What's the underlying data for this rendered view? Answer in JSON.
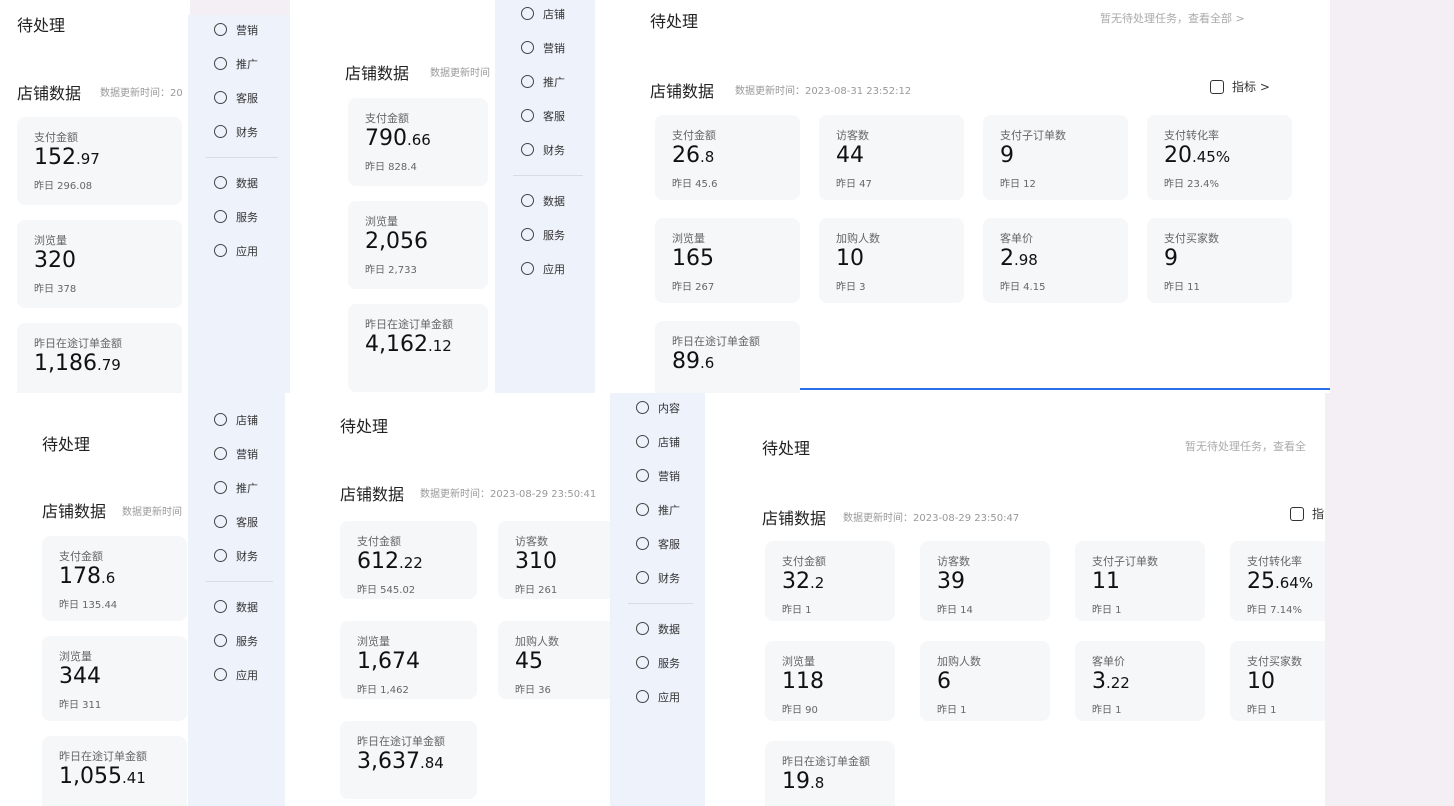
{
  "panels": [
    {
      "pending": "待处理",
      "store_title": "店铺数据",
      "update_time": "数据更新时间：20",
      "cards": [
        {
          "label": "支付金额",
          "value": "152.97",
          "previous": "昨日 296.08"
        },
        {
          "label": "浏览量",
          "value": "320",
          "previous": "昨日 378"
        },
        {
          "label": "昨日在途订单金额",
          "value": "1,186.79"
        }
      ]
    },
    {
      "store_title": "店铺数据",
      "update_time": "数据更新时间",
      "cards": [
        {
          "label": "支付金额",
          "value": "790.66",
          "previous": "昨日 828.4"
        },
        {
          "label": "浏览量",
          "value": "2,056",
          "previous": "昨日 2,733"
        },
        {
          "label": "昨日在途订单金额",
          "value": "4,162.12"
        }
      ]
    },
    {
      "pending": "待处理",
      "notice": "暂无待处理任务，查看全部 >",
      "store_title": "店铺数据",
      "update_time": "数据更新时间：2023-08-31 23:52:12",
      "metric": "指标 >",
      "cards": [
        {
          "label": "支付金额",
          "value": "26.8",
          "previous": "昨日 45.6"
        },
        {
          "label": "访客数",
          "value": "44",
          "previous": "昨日 47"
        },
        {
          "label": "支付子订单数",
          "value": "9",
          "previous": "昨日 12"
        },
        {
          "label": "支付转化率",
          "value": "20.45%",
          "previous": "昨日 23.4%"
        },
        {
          "label": "浏览量",
          "value": "165",
          "previous": "昨日 267"
        },
        {
          "label": "加购人数",
          "value": "10",
          "previous": "昨日 3"
        },
        {
          "label": "客单价",
          "value": "2.98",
          "previous": "昨日 4.15"
        },
        {
          "label": "支付买家数",
          "value": "9",
          "previous": "昨日 11"
        },
        {
          "label": "昨日在途订单金额",
          "value": "89.6"
        }
      ]
    },
    {
      "pending": "待处理",
      "store_title": "店铺数据",
      "update_time": "数据更新时间",
      "cards": [
        {
          "label": "支付金额",
          "value": "178.6",
          "previous": "昨日 135.44"
        },
        {
          "label": "浏览量",
          "value": "344",
          "previous": "昨日 311"
        },
        {
          "label": "昨日在途订单金额",
          "value": "1,055.41"
        }
      ]
    },
    {
      "pending": "待处理",
      "store_title": "店铺数据",
      "update_time": "数据更新时间：2023-08-29 23:50:41",
      "cards": [
        {
          "label": "支付金额",
          "value": "612.22",
          "previous": "昨日 545.02"
        },
        {
          "label": "访客数",
          "value": "310",
          "previous": "昨日 261"
        },
        {
          "label": "浏览量",
          "value": "1,674",
          "previous": "昨日 1,462"
        },
        {
          "label": "加购人数",
          "value": "45",
          "previous": "昨日 36"
        },
        {
          "label": "昨日在途订单金额",
          "value": "3,637.84"
        }
      ]
    },
    {
      "pending": "待处理",
      "notice": "暂无待处理任务，查看全",
      "store_title": "店铺数据",
      "update_time": "数据更新时间：2023-08-29 23:50:47",
      "metric": "指",
      "cards": [
        {
          "label": "支付金额",
          "value": "32.2",
          "previous": "昨日 1"
        },
        {
          "label": "访客数",
          "value": "39",
          "previous": "昨日 14"
        },
        {
          "label": "支付子订单数",
          "value": "11",
          "previous": "昨日 1"
        },
        {
          "label": "支付转化率",
          "value": "25.64%",
          "previous": "昨日 7.14%"
        },
        {
          "label": "浏览量",
          "value": "118",
          "previous": "昨日 90"
        },
        {
          "label": "加购人数",
          "value": "6",
          "previous": "昨日 1"
        },
        {
          "label": "客单价",
          "value": "3.22",
          "previous": "昨日 1"
        },
        {
          "label": "支付买家数",
          "value": "10",
          "previous": "昨日 1"
        },
        {
          "label": "昨日在途订单金额",
          "value": "19.8"
        }
      ]
    }
  ],
  "sidebars": [
    {
      "items": [
        "营销",
        "推广",
        "客服",
        "财务",
        "数据",
        "服务",
        "应用"
      ]
    },
    {
      "items": [
        "店铺",
        "营销",
        "推广",
        "客服",
        "财务",
        "数据",
        "服务",
        "应用"
      ]
    },
    {
      "items": [
        "店铺",
        "营销",
        "推广",
        "客服",
        "财务",
        "数据",
        "服务",
        "应用"
      ]
    },
    {
      "items": [
        "内容",
        "店铺",
        "营销",
        "推广",
        "客服",
        "财务",
        "数据",
        "服务",
        "应用"
      ]
    }
  ]
}
